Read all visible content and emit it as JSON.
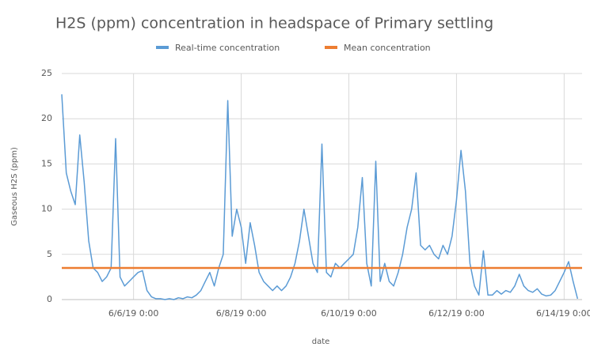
{
  "chart_data": {
    "type": "line",
    "title": "H2S (ppm) concentration in headspace of Primary settling",
    "xlabel": "date",
    "ylabel": "Gaseous H2S (ppm)",
    "x": [
      "6/4/19 16:00",
      "6/4/19 18:00",
      "6/4/19 20:00",
      "6/4/19 22:00",
      "6/5/19 0:00",
      "6/5/19 2:00",
      "6/5/19 4:00",
      "6/5/19 6:00",
      "6/5/19 8:00",
      "6/5/19 10:00",
      "6/5/19 12:00",
      "6/5/19 14:00",
      "6/5/19 16:00",
      "6/5/19 18:00",
      "6/5/19 20:00",
      "6/5/19 22:00",
      "6/6/19 0:00",
      "6/6/19 2:00",
      "6/6/19 4:00",
      "6/6/19 6:00",
      "6/6/19 8:00",
      "6/6/19 10:00",
      "6/6/19 12:00",
      "6/6/19 14:00",
      "6/6/19 16:00",
      "6/6/19 18:00",
      "6/6/19 20:00",
      "6/6/19 22:00",
      "6/7/19 0:00",
      "6/7/19 2:00",
      "6/7/19 4:00",
      "6/7/19 6:00",
      "6/7/19 8:00",
      "6/7/19 10:00",
      "6/7/19 12:00",
      "6/7/19 14:00",
      "6/7/19 16:00",
      "6/7/19 18:00",
      "6/7/19 20:00",
      "6/7/19 22:00",
      "6/8/19 0:00",
      "6/8/19 2:00",
      "6/8/19 4:00",
      "6/8/19 6:00",
      "6/8/19 8:00",
      "6/8/19 10:00",
      "6/8/19 12:00",
      "6/8/19 14:00",
      "6/8/19 16:00",
      "6/8/19 18:00",
      "6/8/19 20:00",
      "6/8/19 22:00",
      "6/9/19 0:00",
      "6/9/19 2:00",
      "6/9/19 4:00",
      "6/9/19 6:00",
      "6/9/19 8:00",
      "6/9/19 10:00",
      "6/9/19 12:00",
      "6/9/19 14:00",
      "6/9/19 16:00",
      "6/9/19 18:00",
      "6/9/19 20:00",
      "6/9/19 22:00",
      "6/10/19 0:00",
      "6/10/19 2:00",
      "6/10/19 4:00",
      "6/10/19 6:00",
      "6/10/19 8:00",
      "6/10/19 10:00",
      "6/10/19 12:00",
      "6/10/19 14:00",
      "6/10/19 16:00",
      "6/10/19 18:00",
      "6/10/19 20:00",
      "6/10/19 22:00",
      "6/11/19 0:00",
      "6/11/19 2:00",
      "6/11/19 4:00",
      "6/11/19 6:00",
      "6/11/19 8:00",
      "6/11/19 10:00",
      "6/11/19 12:00",
      "6/11/19 14:00",
      "6/11/19 16:00",
      "6/11/19 18:00",
      "6/11/19 20:00",
      "6/11/19 22:00",
      "6/12/19 0:00",
      "6/12/19 2:00",
      "6/12/19 4:00",
      "6/12/19 6:00",
      "6/12/19 8:00",
      "6/12/19 10:00",
      "6/12/19 12:00",
      "6/12/19 14:00",
      "6/12/19 16:00",
      "6/12/19 18:00",
      "6/12/19 20:00",
      "6/12/19 22:00",
      "6/13/19 0:00",
      "6/13/19 2:00",
      "6/13/19 4:00",
      "6/13/19 6:00",
      "6/13/19 8:00",
      "6/13/19 10:00",
      "6/13/19 12:00",
      "6/13/19 14:00",
      "6/13/19 16:00",
      "6/13/19 18:00",
      "6/13/19 20:00",
      "6/13/19 22:00",
      "6/14/19 0:00",
      "6/14/19 2:00",
      "6/14/19 4:00",
      "6/14/19 6:00"
    ],
    "series": [
      {
        "name": "Real-time concentration",
        "color": "#5b9bd5",
        "values": [
          22.7,
          14,
          12,
          10.5,
          18.2,
          13,
          6.5,
          3.5,
          3,
          2,
          2.5,
          3.5,
          17.8,
          2.5,
          1.5,
          2,
          2.5,
          3,
          3.2,
          1,
          0.3,
          0.1,
          0.1,
          0,
          0.1,
          0,
          0.2,
          0.1,
          0.3,
          0.2,
          0.5,
          1,
          2,
          3,
          1.5,
          3.5,
          5,
          22,
          7,
          10,
          8,
          4,
          8.5,
          6,
          3,
          2,
          1.5,
          1,
          1.5,
          1,
          1.5,
          2.5,
          4,
          6.5,
          10,
          7,
          4,
          3,
          17.2,
          3,
          2.5,
          4,
          3.5,
          4,
          4.5,
          5,
          8,
          13.5,
          4,
          1.5,
          15.3,
          2,
          4,
          2,
          1.5,
          3,
          5,
          8,
          10,
          14,
          6,
          5.5,
          6,
          5,
          4.5,
          6,
          5,
          7,
          11,
          16.5,
          12,
          4,
          1.5,
          0.5,
          5.4,
          0.5,
          0.5,
          1,
          0.6,
          1,
          0.8,
          1.5,
          2.8,
          1.5,
          1,
          0.8,
          1.2,
          0.6,
          0.4,
          0.5,
          1,
          2,
          3,
          4.2,
          2,
          0.1
        ]
      },
      {
        "name": "Mean concentration",
        "color": "#ed7d31",
        "value": 3.5
      }
    ],
    "xlim": [
      "6/4/19 16:00",
      "6/14/19 8:00"
    ],
    "xticks": [
      "6/6/19 0:00",
      "6/8/19 0:00",
      "6/10/19 0:00",
      "6/12/19 0:00",
      "6/14/19 0:00"
    ],
    "ylim": [
      0,
      25
    ],
    "yticks": [
      0,
      5,
      10,
      15,
      20,
      25
    ],
    "grid": true
  }
}
